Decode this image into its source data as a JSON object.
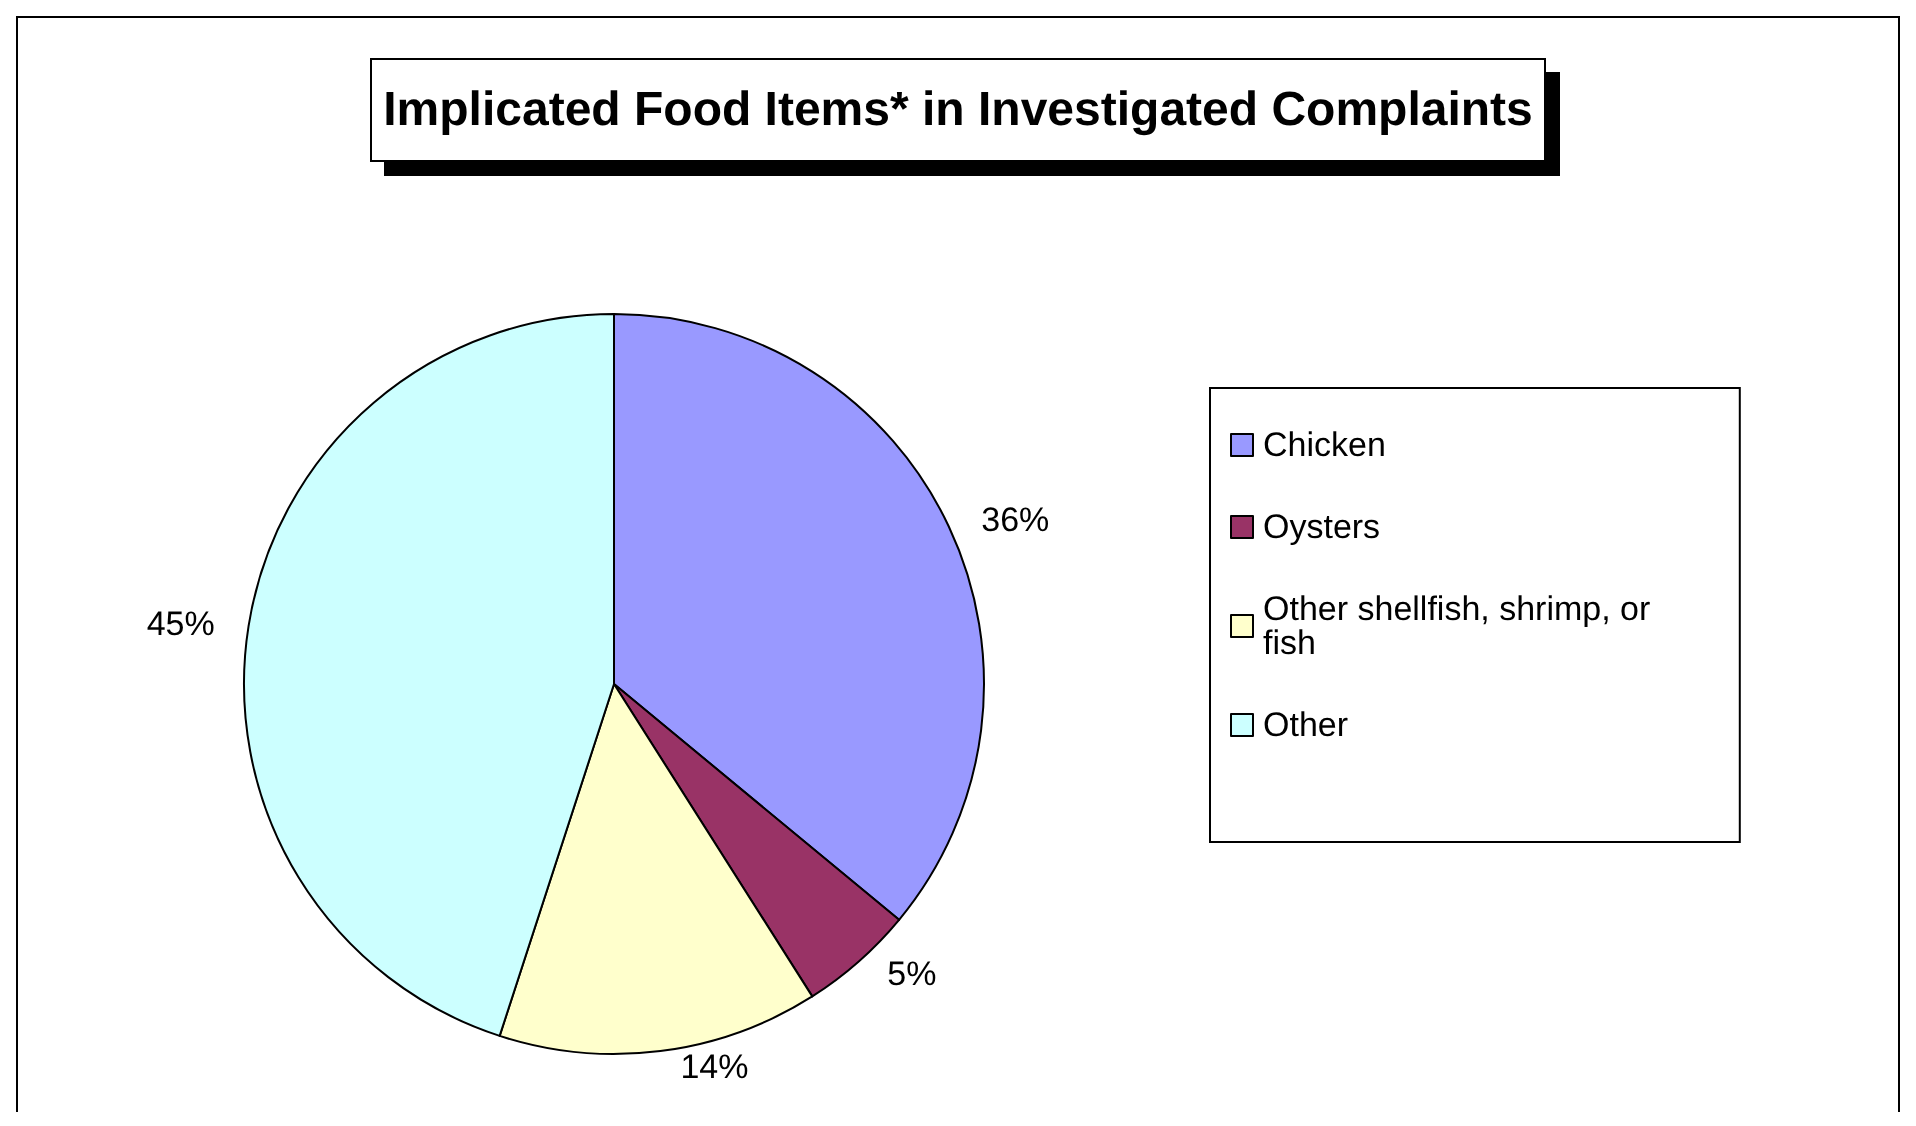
{
  "chart_data": {
    "type": "pie",
    "title": "Implicated Food Items* in Investigated Complaints",
    "categories": [
      "Chicken",
      "Oysters",
      "Other shellfish, shrimp, or fish",
      "Other"
    ],
    "values": [
      36,
      5,
      14,
      45
    ],
    "colors": [
      "#9999ff",
      "#993366",
      "#ffffcc",
      "#ccffff"
    ],
    "value_labels": [
      "36%",
      "5%",
      "14%",
      "45%"
    ],
    "legend": "right"
  }
}
